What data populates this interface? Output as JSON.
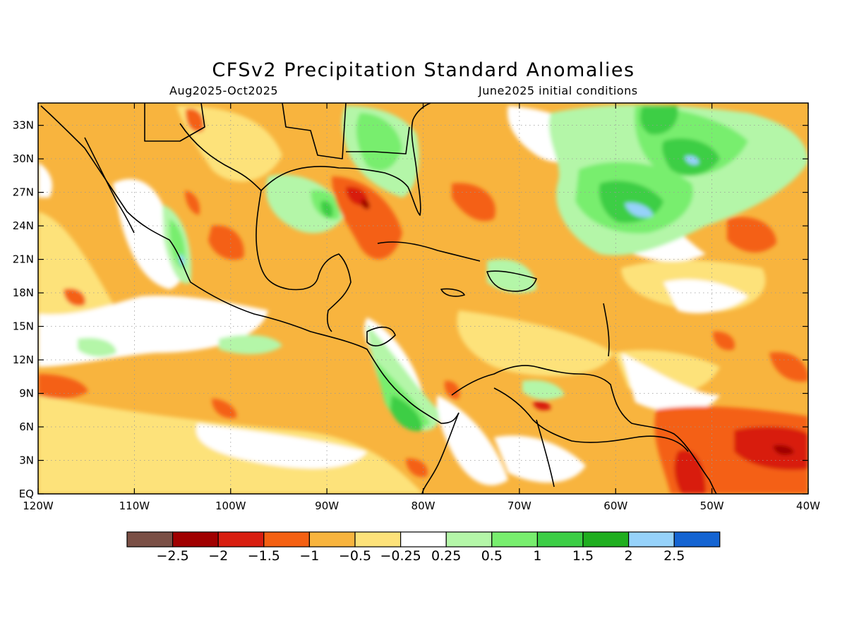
{
  "header": {
    "title": "CFSv2 Precipitation Standard Anomalies",
    "period": "Aug2025-Oct2025",
    "init": "June2025 initial conditions"
  },
  "map": {
    "lon_range": [
      -120,
      -40
    ],
    "lat_range": [
      0,
      35
    ],
    "x_ticks": [
      {
        "value": -120,
        "label": "120W"
      },
      {
        "value": -110,
        "label": "110W"
      },
      {
        "value": -100,
        "label": "100W"
      },
      {
        "value": -90,
        "label": "90W"
      },
      {
        "value": -80,
        "label": "80W"
      },
      {
        "value": -70,
        "label": "70W"
      },
      {
        "value": -60,
        "label": "60W"
      },
      {
        "value": -50,
        "label": "50W"
      },
      {
        "value": -40,
        "label": "40W"
      }
    ],
    "y_ticks": [
      {
        "value": 0,
        "label": "EQ"
      },
      {
        "value": 3,
        "label": "3N"
      },
      {
        "value": 6,
        "label": "6N"
      },
      {
        "value": 9,
        "label": "9N"
      },
      {
        "value": 12,
        "label": "12N"
      },
      {
        "value": 15,
        "label": "15N"
      },
      {
        "value": 18,
        "label": "18N"
      },
      {
        "value": 21,
        "label": "21N"
      },
      {
        "value": 24,
        "label": "24N"
      },
      {
        "value": 27,
        "label": "27N"
      },
      {
        "value": 30,
        "label": "30N"
      },
      {
        "value": 33,
        "label": "33N"
      }
    ],
    "grid": true
  },
  "colorbar": {
    "colors": [
      "#7a4f45",
      "#a00000",
      "#d81e10",
      "#f46012",
      "#f8b43e",
      "#fde27a",
      "#ffffff",
      "#b4f6a8",
      "#78ee6e",
      "#3cce45",
      "#1fae1f",
      "#96d2fa",
      "#1464d2"
    ],
    "labels": [
      "-2.5",
      "-2",
      "-1.5",
      "-1",
      "-0.5",
      "-0.25",
      "0.25",
      "0.5",
      "1",
      "1.5",
      "2",
      "2.5"
    ]
  }
}
